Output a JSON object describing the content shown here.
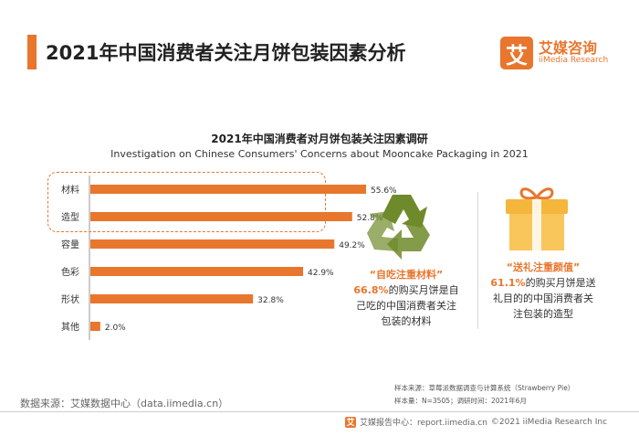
{
  "header": {
    "title": "2021年中国消费者关注月饼包装因素分析",
    "logo_mark": "艾",
    "logo_cn": "艾媒咨询",
    "logo_en": "iiMedia Research"
  },
  "chart_data": {
    "type": "bar",
    "orientation": "horizontal",
    "title": "2021年中国消费者对月饼包装关注因素调研",
    "subtitle": "Investigation on Chinese Consumers' Concerns about Mooncake Packaging in 2021",
    "categories": [
      "材料",
      "造型",
      "容量",
      "色彩",
      "形状",
      "其他"
    ],
    "values": [
      55.6,
      52.8,
      49.2,
      42.9,
      32.8,
      2.0
    ],
    "labels": [
      "55.6%",
      "52.8%",
      "49.2%",
      "42.9%",
      "32.8%",
      "2.0%"
    ],
    "unit": "%",
    "xlim": [
      0,
      60
    ],
    "color": "#e8762d",
    "highlighted_categories": [
      "材料",
      "造型"
    ]
  },
  "panels": {
    "left": {
      "icon": "recycle-icon",
      "title": "“自吃注重材料”",
      "pct": "66.8%",
      "line1_rest": "的购买月饼是自",
      "line2": "己吃的中国消费者关注",
      "line3": "包装的材料"
    },
    "right": {
      "icon": "gift-box-icon",
      "title": "“送礼注重颜值”",
      "pct": "61.1%",
      "line1_rest": "的购买月饼是送",
      "line2": "礼目的的中国消费者关",
      "line3": "注包装的造型"
    }
  },
  "footer": {
    "source": "数据来源：艾媒数据中心（data.iimedia.cn）",
    "note_source": "样本来源：草莓派数据调查与计算系统（Strawberry Pie）",
    "note_sample": "样本量：N=3505；调研时间：2021年6月",
    "report": "艾媒报告中心：report.iimedia.cn",
    "copyright": "©2021  iiMedia Research  Inc"
  },
  "colors": {
    "accent": "#e8762d",
    "recycle": "#6f8a2a",
    "gift": "#f5b63c",
    "ribbon": "#e8762d"
  }
}
